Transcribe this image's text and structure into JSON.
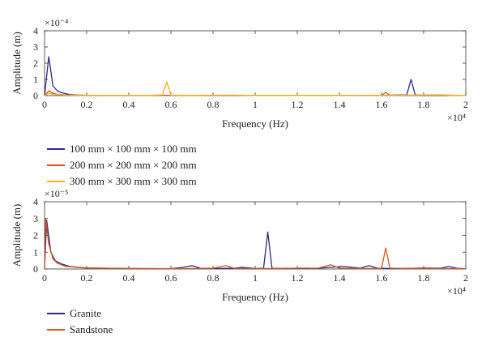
{
  "chart_data": [
    {
      "type": "line",
      "xlabel": "Frequency (Hz)",
      "ylabel": "Amplitude (m)",
      "x_multiplier": "×10⁴",
      "y_multiplier": "×10⁻⁴",
      "xlim": [
        0,
        2
      ],
      "ylim": [
        0,
        4
      ],
      "xticks": [
        "0",
        "0.2",
        "0.4",
        "0.6",
        "0.8",
        "1",
        "1.2",
        "1.4",
        "1.6",
        "1.8",
        "2"
      ],
      "yticks": [
        "0",
        "1",
        "2",
        "3",
        "4"
      ],
      "grid": false,
      "legend_position": "below",
      "series": [
        {
          "name": "100 mm × 100 mm × 100 mm",
          "color": "#2b2a8c",
          "x": [
            0.0,
            0.02,
            0.04,
            0.06,
            0.08,
            0.1,
            0.12,
            0.14,
            0.16,
            0.2,
            0.3,
            0.5,
            0.8,
            1.0,
            1.2,
            1.4,
            1.6,
            1.72,
            1.74,
            1.76,
            1.8,
            2.0
          ],
          "y": [
            0.0,
            2.4,
            0.6,
            0.3,
            0.18,
            0.12,
            0.07,
            0.05,
            0.03,
            0.02,
            0.01,
            0.01,
            0.01,
            0.01,
            0.01,
            0.01,
            0.02,
            0.05,
            1.0,
            0.05,
            0.01,
            0.01
          ]
        },
        {
          "name": "200 mm × 200 mm × 200 mm",
          "color": "#d4561c",
          "x": [
            0.0,
            0.02,
            0.04,
            0.06,
            0.1,
            0.2,
            0.5,
            0.9,
            1.2,
            1.5,
            1.6,
            1.62,
            1.64,
            1.7,
            1.88,
            1.92,
            2.0
          ],
          "y": [
            0.0,
            0.3,
            0.15,
            0.08,
            0.04,
            0.02,
            0.01,
            0.02,
            0.01,
            0.02,
            0.02,
            0.2,
            0.02,
            0.01,
            0.05,
            0.01,
            0.01
          ]
        },
        {
          "name": "300 mm × 300 mm × 300 mm",
          "color": "#f0b21a",
          "x": [
            0.0,
            0.02,
            0.04,
            0.1,
            0.2,
            0.5,
            0.56,
            0.58,
            0.6,
            0.7,
            0.9,
            1.0,
            1.3,
            1.6,
            1.9,
            2.0
          ],
          "y": [
            0.0,
            0.15,
            0.08,
            0.03,
            0.02,
            0.02,
            0.05,
            0.85,
            0.03,
            0.02,
            0.03,
            0.01,
            0.01,
            0.02,
            0.04,
            0.01
          ]
        }
      ]
    },
    {
      "type": "line",
      "xlabel": "Frequency (Hz)",
      "ylabel": "Amplitude (m)",
      "x_multiplier": "×10⁴",
      "y_multiplier": "×10⁻⁵",
      "xlim": [
        0,
        2
      ],
      "ylim": [
        0,
        4
      ],
      "xticks": [
        "0",
        "0.2",
        "0.4",
        "0.6",
        "0.8",
        "1",
        "1.2",
        "1.4",
        "1.6",
        "1.8",
        "2"
      ],
      "yticks": [
        "0",
        "1",
        "2",
        "3",
        "4"
      ],
      "grid": false,
      "legend_position": "below",
      "series": [
        {
          "name": "Granite",
          "color": "#2b2a8c",
          "x": [
            0.0,
            0.01,
            0.03,
            0.05,
            0.08,
            0.12,
            0.2,
            0.4,
            0.6,
            0.66,
            0.7,
            0.74,
            0.8,
            0.9,
            0.94,
            1.0,
            1.04,
            1.06,
            1.08,
            1.12,
            1.2,
            1.3,
            1.42,
            1.5,
            1.54,
            1.58,
            1.64,
            1.7,
            1.8,
            1.88,
            1.92,
            1.96,
            2.0
          ],
          "y": [
            0.0,
            2.9,
            1.0,
            0.5,
            0.3,
            0.15,
            0.06,
            0.03,
            0.02,
            0.1,
            0.2,
            0.05,
            0.03,
            0.05,
            0.1,
            0.03,
            0.05,
            2.2,
            0.05,
            0.03,
            0.04,
            0.05,
            0.15,
            0.05,
            0.2,
            0.05,
            0.03,
            0.03,
            0.06,
            0.05,
            0.15,
            0.04,
            0.02
          ]
        },
        {
          "name": "Sandstone",
          "color": "#d4561c",
          "x": [
            0.0,
            0.005,
            0.02,
            0.04,
            0.06,
            0.1,
            0.2,
            0.4,
            0.6,
            0.8,
            0.86,
            0.9,
            1.0,
            1.1,
            1.2,
            1.3,
            1.36,
            1.4,
            1.5,
            1.6,
            1.62,
            1.64,
            1.7,
            1.8,
            1.9,
            2.0
          ],
          "y": [
            0.0,
            3.0,
            1.5,
            0.6,
            0.35,
            0.15,
            0.06,
            0.03,
            0.02,
            0.05,
            0.2,
            0.05,
            0.03,
            0.03,
            0.05,
            0.05,
            0.25,
            0.05,
            0.03,
            0.03,
            1.25,
            0.05,
            0.03,
            0.04,
            0.03,
            0.02
          ]
        }
      ]
    }
  ]
}
